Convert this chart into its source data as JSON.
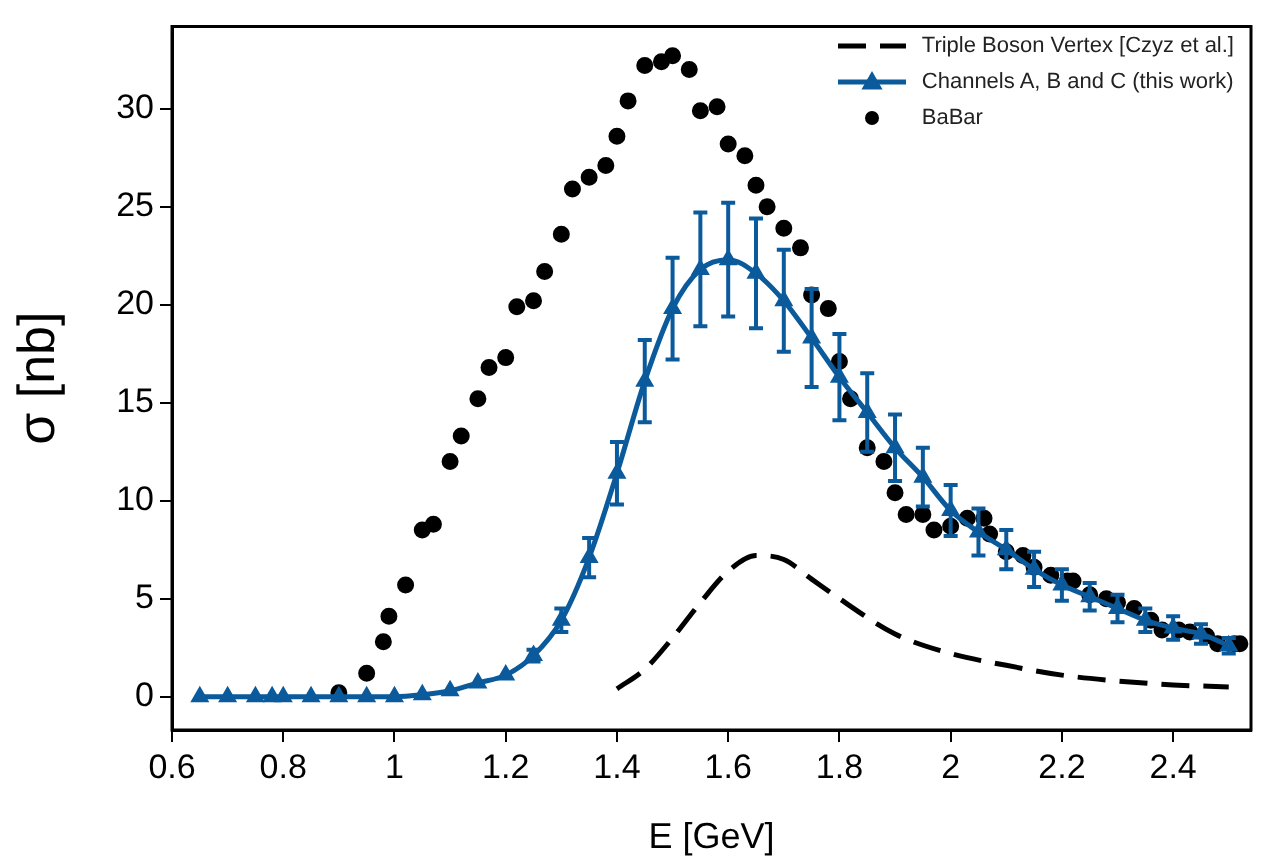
{
  "chart_data": {
    "type": "line",
    "xlabel": "E [GeV]",
    "ylabel": "σ [nb]",
    "xlim": [
      0.6,
      2.54
    ],
    "xticks": [
      0.6,
      0.8,
      1,
      1.2,
      1.4,
      1.6,
      1.8,
      2,
      2.2,
      2.4
    ],
    "ylim": [
      -1.7,
      34.2
    ],
    "yticks": [
      0,
      5,
      10,
      15,
      20,
      25,
      30
    ],
    "grid": false,
    "legend": "top right",
    "series": [
      {
        "name": "Triple Boson Vertex [Czyz et al.]",
        "color": "#000000",
        "line_style": "dashed",
        "marker": "none",
        "x": [
          1.4,
          1.45,
          1.5,
          1.55,
          1.6,
          1.65,
          1.7,
          1.75,
          1.8,
          1.9,
          2.0,
          2.1,
          2.2,
          2.3,
          2.4,
          2.5
        ],
        "values": [
          0.4,
          1.4,
          3.0,
          4.8,
          6.4,
          7.2,
          7.0,
          6.0,
          5.0,
          3.2,
          2.2,
          1.6,
          1.1,
          0.8,
          0.6,
          0.5
        ]
      },
      {
        "name": "Channels A, B and C (this work)",
        "color": "#0b5a9c",
        "line_style": "solid",
        "marker": "triangle",
        "x": [
          0.65,
          0.7,
          0.75,
          0.78,
          0.8,
          0.85,
          0.9,
          0.95,
          1.0,
          1.05,
          1.1,
          1.15,
          1.2,
          1.25,
          1.3,
          1.35,
          1.4,
          1.45,
          1.5,
          1.55,
          1.6,
          1.65,
          1.7,
          1.75,
          1.8,
          1.85,
          1.9,
          1.95,
          2.0,
          2.05,
          2.1,
          2.15,
          2.2,
          2.25,
          2.3,
          2.35,
          2.4,
          2.45,
          2.5
        ],
        "values": [
          0,
          0,
          0,
          0,
          0,
          0,
          0,
          0,
          0,
          0.1,
          0.3,
          0.7,
          1.1,
          2.1,
          3.9,
          7.1,
          11.4,
          16.1,
          19.8,
          21.8,
          22.3,
          21.6,
          20.2,
          18.3,
          16.3,
          14.5,
          12.7,
          11.2,
          9.5,
          8.4,
          7.5,
          6.5,
          5.7,
          5.1,
          4.5,
          3.9,
          3.5,
          3.2,
          2.6
        ],
        "errors": [
          null,
          null,
          null,
          null,
          null,
          null,
          null,
          null,
          null,
          null,
          null,
          null,
          null,
          0.3,
          0.6,
          1.0,
          1.6,
          2.1,
          2.6,
          2.9,
          2.9,
          2.8,
          2.6,
          2.5,
          2.2,
          2.0,
          1.7,
          1.5,
          1.3,
          1.2,
          1.0,
          0.9,
          0.8,
          0.7,
          0.7,
          0.6,
          0.6,
          0.5,
          0.4
        ]
      },
      {
        "name": "BaBar",
        "type": "scatter",
        "color": "#000000",
        "marker": "circle",
        "x": [
          0.9,
          0.95,
          0.98,
          0.99,
          1.02,
          1.05,
          1.07,
          1.1,
          1.12,
          1.15,
          1.17,
          1.2,
          1.22,
          1.25,
          1.27,
          1.3,
          1.32,
          1.35,
          1.38,
          1.4,
          1.42,
          1.45,
          1.48,
          1.5,
          1.53,
          1.55,
          1.58,
          1.6,
          1.63,
          1.65,
          1.67,
          1.7,
          1.73,
          1.75,
          1.78,
          1.8,
          1.82,
          1.85,
          1.88,
          1.9,
          1.92,
          1.95,
          1.97,
          2.0,
          2.03,
          2.06,
          2.07,
          2.1,
          2.13,
          2.15,
          2.18,
          2.21,
          2.22,
          2.25,
          2.28,
          2.3,
          2.33,
          2.36,
          2.38,
          2.41,
          2.43,
          2.46,
          2.48,
          2.51,
          2.52
        ],
        "values": [
          0.2,
          1.2,
          2.8,
          4.1,
          5.7,
          8.5,
          8.8,
          12.0,
          13.3,
          15.2,
          16.8,
          17.3,
          19.9,
          20.2,
          21.7,
          23.6,
          25.9,
          26.5,
          27.1,
          28.6,
          30.4,
          32.2,
          32.4,
          32.7,
          32.0,
          29.9,
          30.1,
          28.2,
          27.6,
          26.1,
          25.0,
          23.9,
          22.9,
          20.5,
          19.8,
          17.1,
          15.2,
          12.7,
          12.0,
          10.4,
          9.3,
          9.3,
          8.5,
          8.7,
          9.1,
          9.1,
          8.3,
          7.4,
          7.2,
          6.6,
          6.2,
          5.9,
          5.9,
          5.2,
          5.0,
          4.8,
          4.5,
          3.9,
          3.4,
          3.4,
          3.3,
          3.1,
          2.7,
          2.7,
          2.7
        ]
      }
    ]
  }
}
